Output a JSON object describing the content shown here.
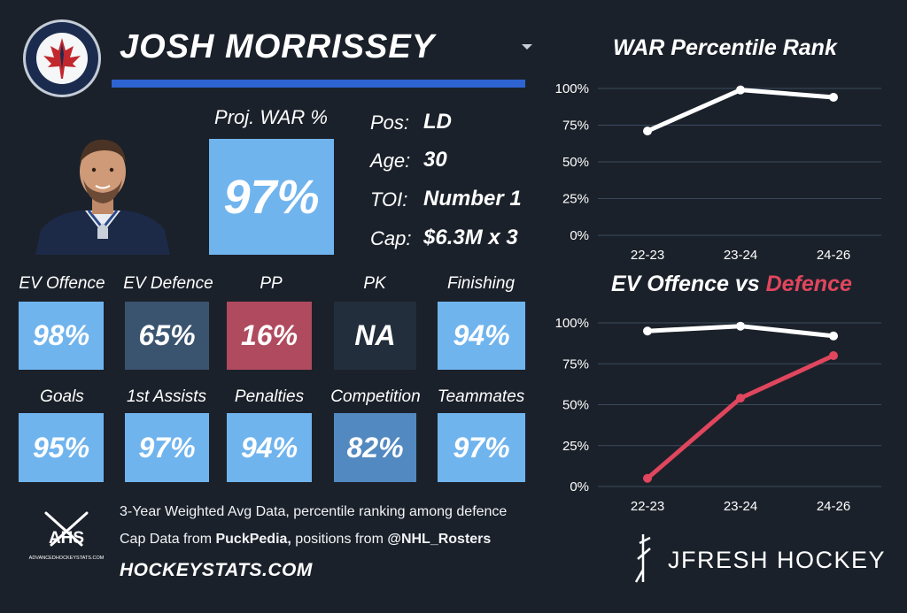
{
  "player": {
    "name": "JOSH MORRISSEY",
    "proj_war_label": "Proj. WAR %",
    "proj_war_value": "97%"
  },
  "info": [
    {
      "label": "Pos:",
      "value": "LD"
    },
    {
      "label": "Age:",
      "value": "30"
    },
    {
      "label": "TOI:",
      "value": "Number 1"
    },
    {
      "label": "Cap:",
      "value": "$6.3M x 3"
    }
  ],
  "metrics_row1": [
    {
      "label": "EV Offence",
      "value": "98%",
      "color": "#70b4ee"
    },
    {
      "label": "EV Defence",
      "value": "65%",
      "color": "#3a536f"
    },
    {
      "label": "PP",
      "value": "16%",
      "color": "#b04a5e"
    },
    {
      "label": "PK",
      "value": "NA",
      "color": "#232e3c"
    },
    {
      "label": "Finishing",
      "value": "94%",
      "color": "#70b4ee"
    }
  ],
  "metrics_row2": [
    {
      "label": "Goals",
      "value": "95%",
      "color": "#70b4ee"
    },
    {
      "label": "1st Assists",
      "value": "97%",
      "color": "#70b4ee"
    },
    {
      "label": "Penalties",
      "value": "94%",
      "color": "#70b4ee"
    },
    {
      "label": "Competition",
      "value": "82%",
      "color": "#5289c0"
    },
    {
      "label": "Teammates",
      "value": "97%",
      "color": "#70b4ee"
    }
  ],
  "footer": {
    "line1": "3-Year Weighted Avg Data, percentile ranking among defence",
    "line2_pre": "Cap Data from ",
    "line2_bold1": "PuckPedia,",
    "line2_mid": " positions from ",
    "line2_bold2": "@NHL_Rosters",
    "site": "HOCKEYSTATS.COM",
    "ahs_logo_text": "AHS",
    "ahs_logo_sub": "ADVANCEDHOCKEYSTATS.COM",
    "brand": "JFRESH HOCKEY"
  },
  "chart_data": [
    {
      "type": "line",
      "title": "WAR Percentile Rank",
      "categories": [
        "22-23",
        "23-24",
        "24-26"
      ],
      "ylim": [
        0,
        100
      ],
      "yticks": [
        "0%",
        "25%",
        "50%",
        "75%",
        "100%"
      ],
      "series": [
        {
          "name": "WAR",
          "values": [
            71,
            99,
            94
          ],
          "color": "#ffffff"
        }
      ]
    },
    {
      "type": "line",
      "title_part1": "EV Offence vs ",
      "title_part2": "Defence",
      "categories": [
        "22-23",
        "23-24",
        "24-26"
      ],
      "ylim": [
        0,
        100
      ],
      "yticks": [
        "0%",
        "25%",
        "50%",
        "75%",
        "100%"
      ],
      "series": [
        {
          "name": "EV Offence",
          "values": [
            95,
            98,
            92
          ],
          "color": "#ffffff"
        },
        {
          "name": "Defence",
          "values": [
            5,
            54,
            80
          ],
          "color": "#e0465e"
        }
      ]
    }
  ]
}
